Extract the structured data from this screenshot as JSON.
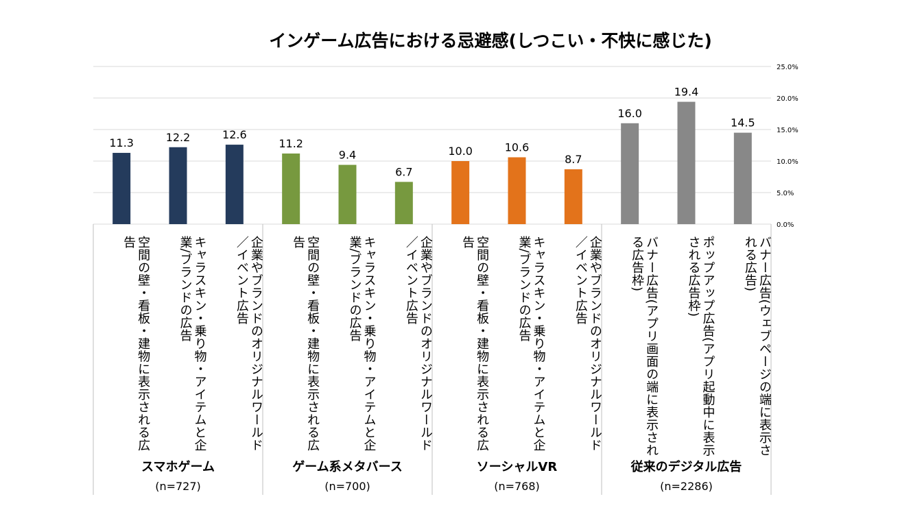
{
  "chart_data": {
    "type": "bar",
    "title": "インゲーム広告における忌避感(しつこい・不快に感じた)",
    "y_axis": {
      "min": 0,
      "max": 25,
      "step": 5,
      "position": "right",
      "tick_labels": [
        "0.0%",
        "5.0%",
        "10.0%",
        "15.0%",
        "20.0%",
        "25.0%"
      ]
    },
    "grid": true,
    "legend": "none",
    "groups": [
      {
        "name": "スマホゲーム",
        "n": "(n=727)",
        "color": "#243b5c",
        "bars": [
          {
            "label": "空間の壁・看板・建物に表示される広告",
            "value": 11.3,
            "value_label": "11.3"
          },
          {
            "label": "キャラスキン・乗り物・アイテムと企業/ブランドの広告",
            "value": 12.2,
            "value_label": "12.2"
          },
          {
            "label": "企業やブランドのオリジナルワールド／イベント広告",
            "value": 12.6,
            "value_label": "12.6"
          }
        ]
      },
      {
        "name": "ゲーム系メタバース",
        "n": "(n=700)",
        "color": "#77993f",
        "bars": [
          {
            "label": "空間の壁・看板・建物に表示される広告",
            "value": 11.2,
            "value_label": "11.2"
          },
          {
            "label": "キャラスキン・乗り物・アイテムと企業/ブランドの広告",
            "value": 9.4,
            "value_label": "9.4"
          },
          {
            "label": "企業やブランドのオリジナルワールド／イベント広告",
            "value": 6.7,
            "value_label": "6.7"
          }
        ]
      },
      {
        "name": "ソーシャルVR",
        "n": "(n=768)",
        "color": "#e3731b",
        "bars": [
          {
            "label": "空間の壁・看板・建物に表示される広告",
            "value": 10.0,
            "value_label": "10.0"
          },
          {
            "label": "キャラスキン・乗り物・アイテムと企業/ブランドの広告",
            "value": 10.6,
            "value_label": "10.6"
          },
          {
            "label": "企業やブランドのオリジナルワールド／イベント広告",
            "value": 8.7,
            "value_label": "8.7"
          }
        ]
      },
      {
        "name": "従来のデジタル広告",
        "n": "(n=2286)",
        "color": "#888888",
        "bars": [
          {
            "label": "バナー広告(アプリ画面の端に表示される広告枠)",
            "value": 16.0,
            "value_label": "16.0"
          },
          {
            "label": "ポップアップ広告(アプリ起動中に表示される広告枠)",
            "value": 19.4,
            "value_label": "19.4"
          },
          {
            "label": "バナー広告(ウェブページの端に表示される広告)",
            "value": 14.5,
            "value_label": "14.5"
          }
        ]
      }
    ]
  }
}
